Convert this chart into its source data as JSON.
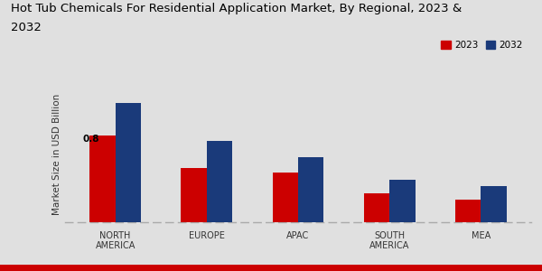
{
  "title_line1": "Hot Tub Chemicals For Residential Application Market, By Regional, 2023 &",
  "title_line2": "2032",
  "ylabel": "Market Size in USD Billion",
  "categories": [
    "NORTH\nAMERICA",
    "EUROPE",
    "APAC",
    "SOUTH\nAMERICA",
    "MEA"
  ],
  "values_2023": [
    0.8,
    0.5,
    0.46,
    0.27,
    0.21
  ],
  "values_2032": [
    1.1,
    0.75,
    0.6,
    0.39,
    0.33
  ],
  "color_2023": "#cc0000",
  "color_2032": "#1a3a7a",
  "annotation_text": "0.8",
  "annotation_bar": 0,
  "legend_2023": "2023",
  "legend_2032": "2032",
  "bar_width": 0.28,
  "title_fontsize": 9.5,
  "label_fontsize": 7.5,
  "tick_fontsize": 7,
  "background_color_top": "#e8e8e8",
  "background_color_bottom": "#d0d0d0",
  "ylim": [
    0,
    1.25
  ],
  "bottom_bar_color": "#cc0000",
  "bottom_bar_height": 0.022
}
